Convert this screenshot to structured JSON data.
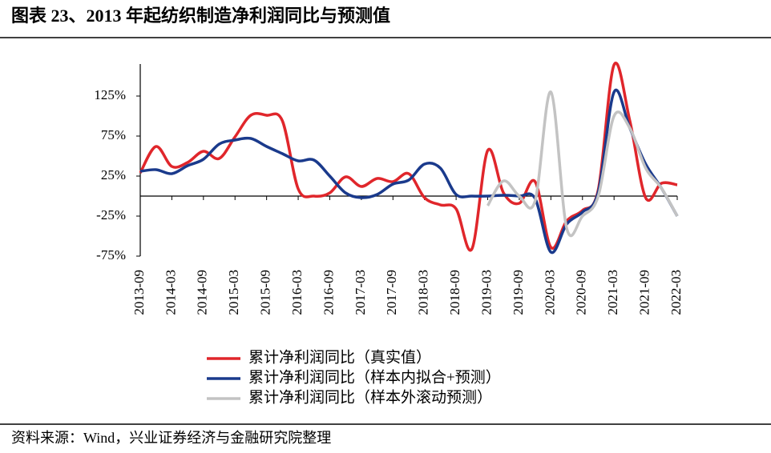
{
  "chart_data": {
    "type": "line",
    "title": "图表 23、2013 年起纺织制造净利润同比与预测值",
    "source": "资料来源：Wind，兴业证券经济与金融研究院整理",
    "categories": [
      "2013-09",
      null,
      "2014-03",
      null,
      "2014-09",
      null,
      "2015-03",
      null,
      "2015-09",
      null,
      "2016-03",
      null,
      "2016-09",
      null,
      "2017-03",
      null,
      "2017-09",
      null,
      "2018-03",
      null,
      "2018-09",
      null,
      "2019-03",
      null,
      "2019-09",
      null,
      "2020-03",
      null,
      "2020-09",
      null,
      "2021-03",
      null,
      "2021-09",
      null,
      "2022-03"
    ],
    "series": [
      {
        "name": "累计净利润同比（真实值）",
        "color": "#e0262b",
        "values": [
          29,
          62,
          37,
          42,
          56,
          47,
          74,
          101,
          101,
          94,
          9,
          0,
          4,
          24,
          12,
          22,
          18,
          28,
          -2,
          -11,
          -16,
          -66,
          57,
          4,
          -9,
          18,
          -64,
          -31,
          -18,
          8,
          164,
          94,
          -2,
          16,
          14
        ]
      },
      {
        "name": "累计净利润同比（样本内拟合+预测）",
        "color": "#1a3a8c",
        "values": [
          31,
          33,
          28,
          38,
          46,
          65,
          70,
          72,
          62,
          53,
          44,
          45,
          25,
          4,
          -2,
          2,
          15,
          20,
          40,
          35,
          2,
          0,
          0,
          1,
          0,
          -3,
          -70,
          -35,
          -20,
          5,
          130,
          85,
          40,
          10,
          -25
        ]
      },
      {
        "name": "累计净利润同比（样本外滚动预测）",
        "color": "#c3c3c3",
        "values": [
          null,
          null,
          null,
          null,
          null,
          null,
          null,
          null,
          null,
          null,
          null,
          null,
          null,
          null,
          null,
          null,
          null,
          null,
          null,
          null,
          null,
          null,
          -12,
          19,
          0,
          -6,
          130,
          -40,
          -25,
          0,
          100,
          85,
          35,
          10,
          -25
        ]
      }
    ],
    "ylim": [
      -75,
      165
    ],
    "yticks": [
      {
        "value": -75,
        "label": "-75%"
      },
      {
        "value": -25,
        "label": "-25%"
      },
      {
        "value": 25,
        "label": "25%"
      },
      {
        "value": 75,
        "label": "75%"
      },
      {
        "value": 125,
        "label": "125%"
      }
    ]
  }
}
